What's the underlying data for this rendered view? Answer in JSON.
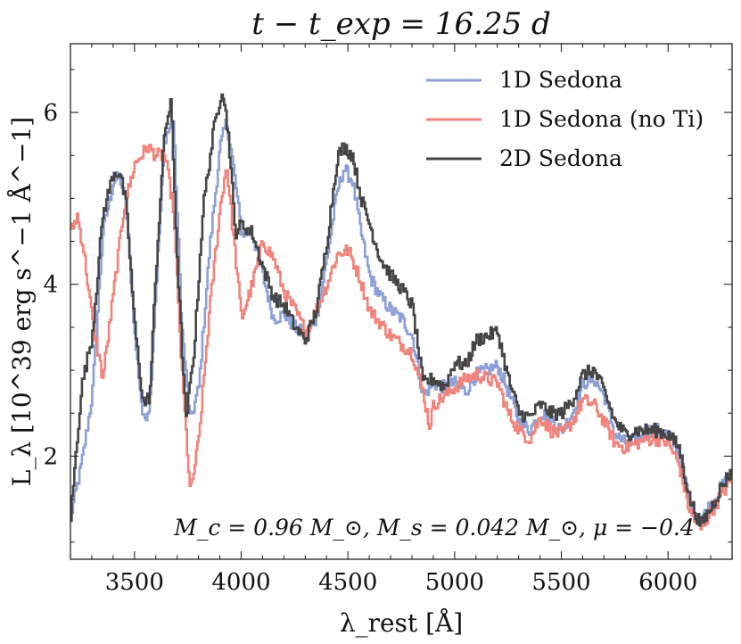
{
  "chart_data": {
    "type": "line",
    "title": "t − t_exp = 16.25 d",
    "xlabel": "λ_rest [Å]",
    "ylabel": "L_λ [10^39 erg s^−1 Å^−1]",
    "xlim": [
      3200,
      6300
    ],
    "ylim": [
      0.8,
      6.8
    ],
    "xticks": [
      3500,
      4000,
      4500,
      5000,
      5500,
      6000
    ],
    "yticks": [
      2,
      4,
      6
    ],
    "grid": false,
    "legend_position": "top-right",
    "annotation": "M_c = 0.96 M_⊙, M_s = 0.042 M_⊙, μ = −0.4",
    "series": [
      {
        "name": "1D Sedona",
        "color": "#8c9fd6",
        "x": [
          3200,
          3250,
          3300,
          3350,
          3400,
          3430,
          3460,
          3500,
          3540,
          3570,
          3600,
          3640,
          3680,
          3720,
          3760,
          3800,
          3850,
          3900,
          3930,
          3960,
          4000,
          4050,
          4100,
          4150,
          4200,
          4250,
          4300,
          4350,
          4400,
          4450,
          4480,
          4520,
          4560,
          4600,
          4650,
          4700,
          4750,
          4800,
          4850,
          4900,
          4950,
          5000,
          5050,
          5100,
          5150,
          5200,
          5250,
          5300,
          5350,
          5400,
          5450,
          5500,
          5550,
          5600,
          5650,
          5700,
          5750,
          5800,
          5850,
          5900,
          5950,
          6000,
          6050,
          6100,
          6150,
          6200,
          6250,
          6300
        ],
        "y": [
          1.3,
          1.9,
          2.7,
          4.6,
          5.2,
          5.25,
          4.9,
          3.4,
          2.4,
          2.6,
          4.0,
          5.7,
          5.9,
          3.5,
          2.4,
          2.8,
          4.4,
          5.6,
          5.9,
          5.4,
          4.6,
          4.6,
          4.1,
          3.6,
          3.65,
          3.5,
          3.4,
          3.6,
          4.3,
          5.1,
          5.35,
          5.2,
          4.6,
          4.1,
          3.85,
          3.7,
          3.6,
          3.4,
          2.7,
          2.85,
          2.8,
          2.85,
          2.75,
          2.95,
          3.0,
          3.05,
          2.75,
          2.4,
          2.3,
          2.5,
          2.45,
          2.3,
          2.5,
          2.85,
          2.9,
          2.7,
          2.25,
          2.15,
          2.2,
          2.3,
          2.3,
          2.25,
          2.05,
          1.45,
          1.25,
          1.45,
          1.65,
          1.8
        ]
      },
      {
        "name": "1D Sedona (no Ti)",
        "color": "#f0837b",
        "x": [
          3200,
          3230,
          3260,
          3300,
          3350,
          3400,
          3450,
          3500,
          3560,
          3600,
          3640,
          3680,
          3720,
          3760,
          3800,
          3850,
          3900,
          3930,
          3960,
          4000,
          4050,
          4100,
          4150,
          4200,
          4250,
          4300,
          4350,
          4400,
          4450,
          4500,
          4550,
          4600,
          4650,
          4700,
          4750,
          4800,
          4850,
          4880,
          4900,
          4950,
          5000,
          5050,
          5100,
          5150,
          5200,
          5250,
          5300,
          5350,
          5400,
          5450,
          5500,
          5550,
          5600,
          5650,
          5700,
          5750,
          5800,
          5850,
          5900,
          5950,
          6000,
          6050,
          6100,
          6150,
          6200,
          6250,
          6300
        ],
        "y": [
          4.6,
          4.8,
          4.4,
          3.6,
          2.9,
          3.9,
          4.9,
          5.4,
          5.6,
          5.5,
          5.5,
          4.9,
          3.0,
          1.55,
          2.2,
          3.7,
          4.9,
          5.4,
          4.6,
          3.6,
          4.0,
          4.5,
          4.3,
          3.9,
          3.7,
          3.45,
          3.7,
          4.0,
          4.35,
          4.4,
          4.1,
          3.7,
          3.55,
          3.4,
          3.3,
          3.2,
          2.75,
          2.35,
          2.6,
          2.7,
          2.8,
          2.9,
          2.95,
          2.9,
          2.85,
          2.5,
          2.3,
          2.2,
          2.45,
          2.3,
          2.25,
          2.4,
          2.65,
          2.6,
          2.4,
          2.15,
          2.1,
          2.15,
          2.2,
          2.2,
          2.15,
          1.9,
          1.35,
          1.15,
          1.35,
          1.55,
          1.75
        ]
      },
      {
        "name": "2D Sedona",
        "color": "#444444",
        "x": [
          3200,
          3250,
          3300,
          3350,
          3400,
          3430,
          3460,
          3500,
          3540,
          3570,
          3600,
          3640,
          3670,
          3700,
          3740,
          3780,
          3820,
          3870,
          3910,
          3940,
          3970,
          4000,
          4050,
          4100,
          4150,
          4200,
          4250,
          4300,
          4350,
          4400,
          4450,
          4480,
          4520,
          4560,
          4600,
          4650,
          4700,
          4750,
          4800,
          4850,
          4900,
          4950,
          5000,
          5050,
          5100,
          5150,
          5200,
          5250,
          5300,
          5350,
          5400,
          5450,
          5500,
          5550,
          5600,
          5650,
          5700,
          5750,
          5800,
          5850,
          5900,
          5950,
          6000,
          6050,
          6100,
          6150,
          6200,
          6250,
          6300
        ],
        "y": [
          1.3,
          2.8,
          3.4,
          4.8,
          5.3,
          5.3,
          4.9,
          3.5,
          2.6,
          2.7,
          4.2,
          5.8,
          6.1,
          4.2,
          2.4,
          3.3,
          4.9,
          5.8,
          6.3,
          5.7,
          4.6,
          4.7,
          4.6,
          4.2,
          3.85,
          3.75,
          3.5,
          3.35,
          3.7,
          4.5,
          5.5,
          5.6,
          5.5,
          5.0,
          4.7,
          4.3,
          4.1,
          3.95,
          3.75,
          2.85,
          2.9,
          2.8,
          3.1,
          3.05,
          3.35,
          3.4,
          3.45,
          2.9,
          2.5,
          2.45,
          2.6,
          2.5,
          2.5,
          2.65,
          2.95,
          3.0,
          2.75,
          2.4,
          2.25,
          2.3,
          2.3,
          2.3,
          2.25,
          2.1,
          1.5,
          1.2,
          1.4,
          1.65,
          1.85
        ]
      }
    ]
  }
}
